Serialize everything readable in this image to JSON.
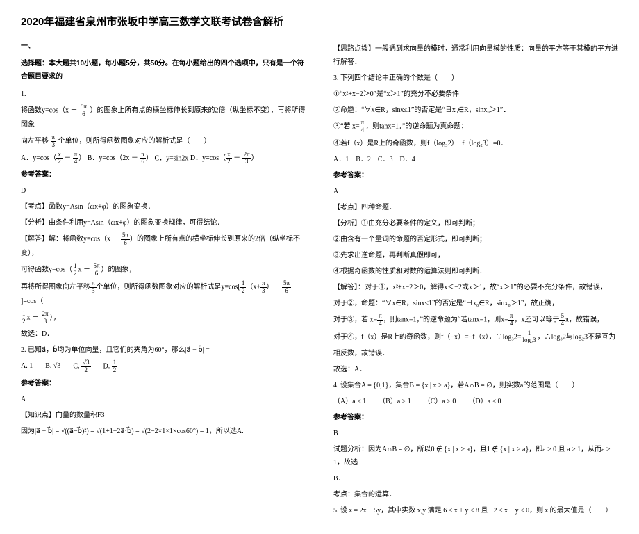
{
  "title": "2020年福建省泉州市张坂中学高三数学文联考试卷含解析",
  "section1_head1": "一、",
  "section1_head2": "选择题：本大题共10小题，每小题5分，共50分。在每小题给出的四个选项中，只有是一个符合题目要求的",
  "left": {
    "q1_num": "1.",
    "q1_l1_a": "将函数y=cos（x －",
    "q1_frac1_num": "5π",
    "q1_frac1_den": "6",
    "q1_l1_b": "）的图象上所有点的横坐标伸长到原来的2倍（纵坐标不变），再将所得图象",
    "q1_l2_a": "向左平移",
    "q1_frac2_num": "π",
    "q1_frac2_den": "3",
    "q1_l2_b": "个单位，则所得函数图象对应的解析式是（　　）",
    "q1_optA_a": "A．y=cos（",
    "q1_optA_f1n": "x",
    "q1_optA_f1d": "2",
    "q1_optA_b": " － ",
    "q1_optA_f2n": "π",
    "q1_optA_f2d": "4",
    "q1_optA_c": "）",
    "q1_optB_a": "B．y=cos（2x － ",
    "q1_optB_f1n": "π",
    "q1_optB_f1d": "6",
    "q1_optB_b": "）",
    "q1_optC": "C．y=sin2x",
    "q1_optD_a": "D．y=cos（",
    "q1_optD_f1n": "x",
    "q1_optD_f1d": "2",
    "q1_optD_b": " － ",
    "q1_optD_f2n": "2π",
    "q1_optD_f2d": "3",
    "q1_optD_c": "）",
    "q1_ans_label": "参考答案：",
    "q1_ans": "D",
    "q1_kd": "【考点】函数y=Asin（ωx+φ）的图象变换．",
    "q1_fx": "【分析】由条件利用y=Asin（ωx+φ）的图象变换规律，可得结论．",
    "q1_jd_a": "【解答】解：将函数y=cos（x － ",
    "q1_jd_f1n": "5π",
    "q1_jd_f1d": "6",
    "q1_jd_b": "）的图象上所有点的横坐标伸长到原来的2倍（纵坐标不变），",
    "q1_jd2_a": "可得函数y=cos（",
    "q1_jd2_f1n": "1",
    "q1_jd2_f1d": "2",
    "q1_jd2_b": "x － ",
    "q1_jd2_f2n": "5π",
    "q1_jd2_f2d": "6",
    "q1_jd2_c": "）的图象，",
    "q1_jd3_a": "再将所得图象向左平移",
    "q1_jd3_f1n": "π",
    "q1_jd3_f1d": "3",
    "q1_jd3_b": "个单位，则所得函数图象对应的解析式是y=cos[",
    "q1_jd3_f2n": "1",
    "q1_jd3_f2d": "2",
    "q1_jd3_c": "（x+",
    "q1_jd3_f3n": "π",
    "q1_jd3_f3d": "3",
    "q1_jd3_d": "）－ ",
    "q1_jd3_f4n": "5π",
    "q1_jd3_f4d": "6",
    "q1_jd3_e": "]=cos（",
    "q1_jd4_f1n": "1",
    "q1_jd4_f1d": "2",
    "q1_jd4_a": "x － ",
    "q1_jd4_f2n": "2π",
    "q1_jd4_f2d": "3",
    "q1_jd4_b": "），",
    "q1_jd5": "故选：D．",
    "q2_a": "2. 已知",
    "q2_vec": "a⃗，b⃗",
    "q2_b": "均为单位向量，且它们的夹角为",
    "q2_ang": "60°",
    "q2_c": "，那么",
    "q2_expr": "|a⃗ − b⃗|",
    "q2_d": " =",
    "q2_optA": "A. 1",
    "q2_optB": "B. √3",
    "q2_optC_a": "C. ",
    "q2_optC_f1n": "√3",
    "q2_optC_f1d": "2",
    "q2_optD_a": "D. ",
    "q2_optD_f1n": "1",
    "q2_optD_f1d": "2",
    "q2_ans_label": "参考答案：",
    "q2_ans": "A",
    "q2_zsd": "【知识点】向量的数量积F3",
    "q2_sol_a": "因为",
    "q2_sol_expr": "|a⃗ − b⃗| = √((a⃗−b⃗)²) = √(1+1−2a⃗·b⃗) = √(2−2×1×1×cos60°)",
    "q2_sol_b": " = 1，所以选A."
  },
  "right": {
    "r1": "【思路点拨】一般遇到求向量的模时，通常利用向量模的性质：向量的平方等于其模的平方进行解答．",
    "q3_head": "3. 下列四个结论中正确的个数是（　　）",
    "q3_1": "①“x²+x−2＞0”是“x＞1”的充分不必要条件",
    "q3_2": "②命题：“∀x∈R，sinx≤1”的否定是“∃x₀∈R，sinx₀＞1”．",
    "q3_3a": "③“若 x=",
    "q3_3f_n": "π",
    "q3_3f_d": "4",
    "q3_3b": "，则tanx=1，”的逆命题为真命题；",
    "q3_4": "④若f（x）是R上的奇函数，则f（log₃2）+f（log₂3）=0．",
    "q3_opts": "A．1　B．2　C．3　D．4",
    "q3_ans_label": "参考答案：",
    "q3_ans": "A",
    "q3_kd": "【考点】四种命题．",
    "q3_fx": "【分析】①由充分必要条件的定义，即可判断；",
    "q3_fx2": "②由含有一个量词的命题的否定形式，即可判断；",
    "q3_fx3": "③先求出逆命题，再判断真假即可，",
    "q3_fx4": "④根据奇函数的性质和对数的运算法则即可判断．",
    "q3_jd1": "【解答】：对于①，x²+x−2＞0，解得x＜−2或x＞1，故“x＞1”的必要不充分条件，故错误，",
    "q3_jd2": "对于②，命题：“∀x∈R，sinx≤1”的否定是“∃x₀∈R，sinx₀＞1”，故正确，",
    "q3_jd3a": "对于③，若 x=",
    "q3_jd3f1n": "π",
    "q3_jd3f1d": "4",
    "q3_jd3b": "，则tanx=1，”的逆命题为“若tanx=1，则x=",
    "q3_jd3f2n": "π",
    "q3_jd3f2d": "4",
    "q3_jd3c": "，x还可以等于",
    "q3_jd3f3n": "5",
    "q3_jd3f3d": "4",
    "q3_jd3d": "π，故错误，",
    "q3_jd4a": "对于④，f（x）是R上的奇函数，则f（−x）=−f（x），∵log₃2=",
    "q3_jd4f1n": "1",
    "q3_jd4f1d": "log₂3",
    "q3_jd4b": "，∴log₃2与log₂3不是互为",
    "q3_jd5": "相反数，故错误．",
    "q3_jd6": "故选：A．",
    "q4_a": "4. 设集合",
    "q4_A": "A = {0,1}",
    "q4_b": "，集合",
    "q4_B": "B = {x | x > a}",
    "q4_c": "，若",
    "q4_AB": "A∩B = ∅",
    "q4_d": "，则实数",
    "q4_e": "a",
    "q4_f": "的范围是（　　）",
    "q4_o1": "（A）a ≤ 1",
    "q4_o2": "（B）a ≥ 1",
    "q4_o3": "（C）a ≥ 0",
    "q4_o4": "（D）a ≤ 0",
    "q4_ans_label": "参考答案：",
    "q4_ans": "B",
    "q4_fx_a": "试题分析：因为",
    "q4_fx_b": "A∩B = ∅",
    "q4_fx_c": "，所以",
    "q4_fx_d": "0 ∉ {x | x > a}",
    "q4_fx_e": "，且",
    "q4_fx_f": "1 ∉ {x | x > a}",
    "q4_fx_g": "，即",
    "q4_fx_h": "a ≥ 0 且 a ≥ 1",
    "q4_fx_i": "，从而",
    "q4_fx_j": "a ≥ 1",
    "q4_fx_k": "，故选",
    "q4_fx2": "B．",
    "q4_kd": "考点：集合的运算．",
    "q5": "5. 设 z = 2x − 5y，其中实数 x,y 满足 6 ≤ x + y ≤ 8 且 −2 ≤ x − y ≤ 0，则 z 的最大值是（　　）"
  }
}
